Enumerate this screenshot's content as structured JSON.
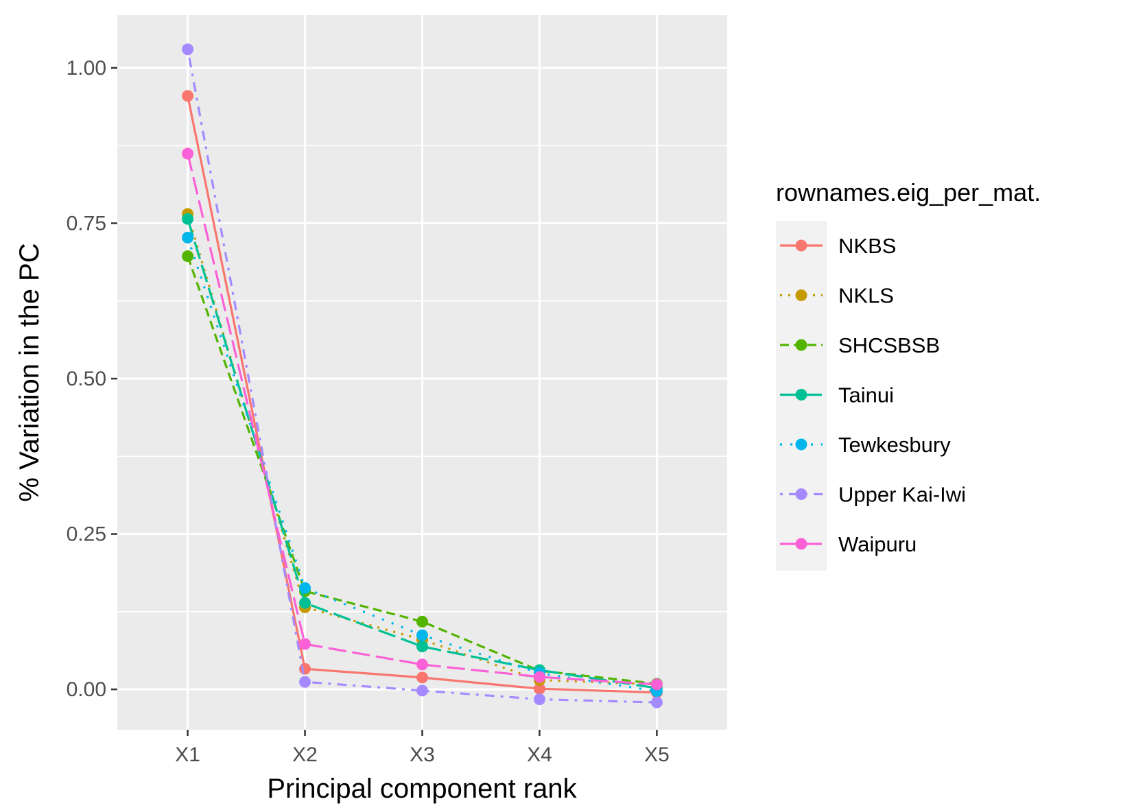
{
  "chart_data": {
    "type": "line",
    "xlabel": "Principal component rank",
    "ylabel": "% Variation in the PC",
    "categories": [
      "X1",
      "X2",
      "X3",
      "X4",
      "X5"
    ],
    "ylim": [
      -0.065,
      1.085
    ],
    "yticks": [
      0.0,
      0.25,
      0.5,
      0.75,
      1.0
    ],
    "ytick_labels": [
      "0.00",
      "0.25",
      "0.50",
      "0.75",
      "1.00"
    ],
    "grid": true,
    "legend": {
      "title": "rownames.eig_per_mat.",
      "placement": "right"
    },
    "colors": {
      "panel_background": "#ebebeb",
      "grid": "#ffffff"
    },
    "series": [
      {
        "name": "NKBS",
        "color": "#F8766D",
        "dash": "solid",
        "values": [
          0.955,
          0.033,
          0.019,
          0.001,
          -0.005
        ]
      },
      {
        "name": "NKLS",
        "color": "#C49A00",
        "dash": "dotted",
        "values": [
          0.765,
          0.132,
          0.08,
          0.015,
          0.008
        ]
      },
      {
        "name": "SHCSBSB",
        "color": "#53B400",
        "dash": "dashed",
        "values": [
          0.697,
          0.158,
          0.109,
          0.03,
          0.009
        ]
      },
      {
        "name": "Tainui",
        "color": "#00C094",
        "dash": "longdash",
        "values": [
          0.757,
          0.139,
          0.069,
          0.031,
          0.002
        ]
      },
      {
        "name": "Tewkesbury",
        "color": "#00B6EB",
        "dash": "dotted-sparse",
        "values": [
          0.727,
          0.163,
          0.087,
          0.026,
          -0.003
        ]
      },
      {
        "name": "Upper Kai-Iwi",
        "color": "#A58AFF",
        "dash": "dotdash",
        "values": [
          1.03,
          0.012,
          -0.002,
          -0.016,
          -0.021
        ]
      },
      {
        "name": "Waipuru",
        "color": "#FB61D7",
        "dash": "longdash",
        "values": [
          0.862,
          0.073,
          0.04,
          0.02,
          0.008
        ]
      }
    ]
  }
}
